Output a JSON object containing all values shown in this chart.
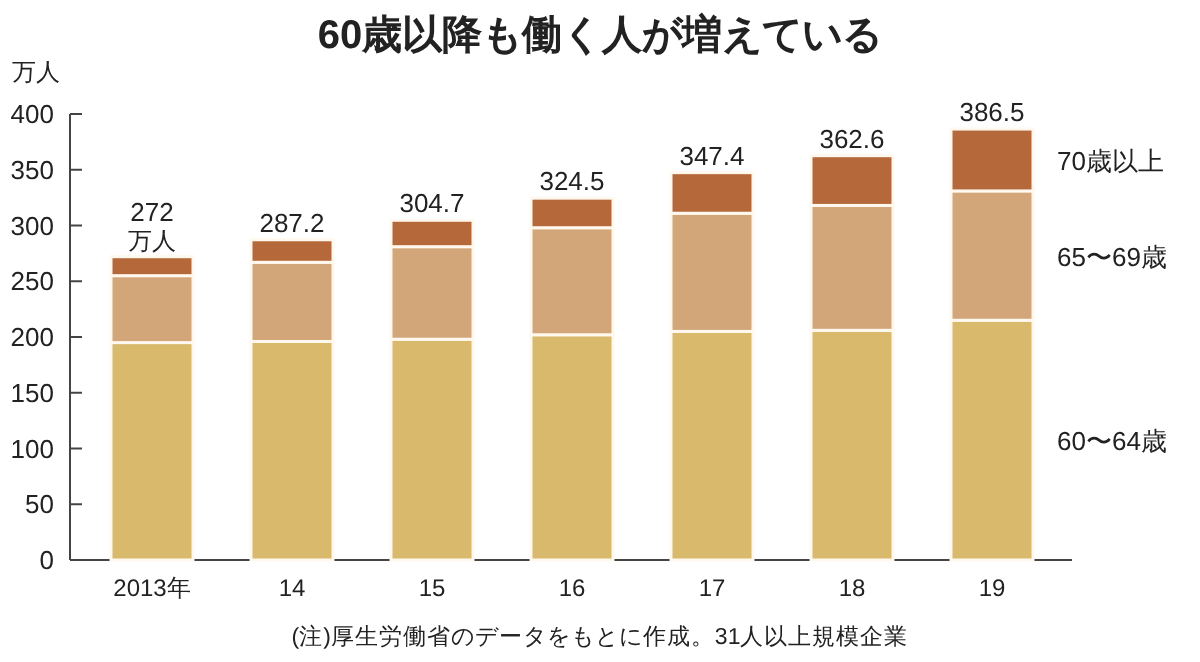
{
  "chart_data": {
    "type": "bar",
    "stacked": true,
    "title": "60歳以降も働く人が増えている",
    "ylabel": "万人",
    "categories": [
      "2013年",
      "14",
      "15",
      "16",
      "17",
      "18",
      "19"
    ],
    "series": [
      {
        "name": "60〜64歳",
        "color": "#d9b96c",
        "values": [
          195,
          196,
          198,
          202,
          205,
          206,
          215
        ]
      },
      {
        "name": "65〜69歳",
        "color": "#d3a679",
        "values": [
          60,
          71,
          83,
          96,
          106,
          112,
          116
        ]
      },
      {
        "name": "70歳以上",
        "color": "#b5693a",
        "values": [
          17,
          20.2,
          23.7,
          26.5,
          36.4,
          44.6,
          55.5
        ]
      }
    ],
    "totals": [
      "272",
      "287.2",
      "304.7",
      "324.5",
      "347.4",
      "362.6",
      "386.5"
    ],
    "ylim": [
      0,
      400
    ],
    "yticks": [
      0,
      50,
      100,
      150,
      200,
      250,
      300,
      350,
      400
    ],
    "annotations": [
      {
        "text": "万人",
        "x": "2013年",
        "y": 272
      },
      "(注)厚生労働省のデータをもとに作成。31人以上規模企業"
    ]
  }
}
